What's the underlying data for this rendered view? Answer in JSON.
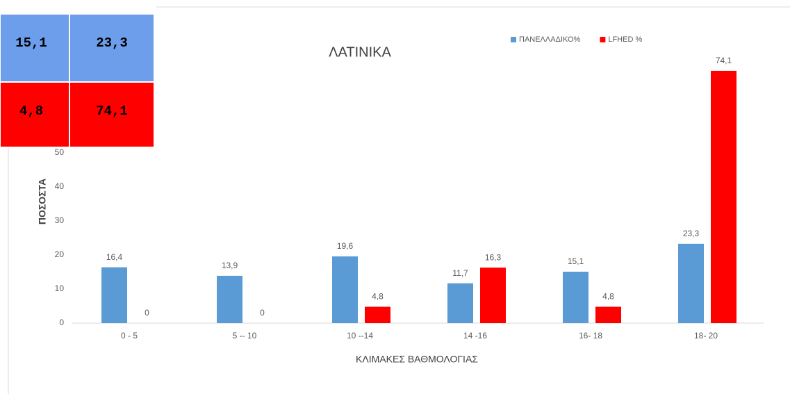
{
  "chart_data": {
    "type": "bar",
    "title": "ΛΑΤΙΝΙΚΑ",
    "x_label": "ΚΛΙΜΑΚΕΣ ΒΑΘΜΟΛΟΓΙΑΣ",
    "y_label": "ΠΟΣΟΣΤΑ",
    "categories": [
      "0 - 5",
      "5 -- 10",
      "10 --14",
      "14 -16",
      "16- 18",
      "18- 20"
    ],
    "series": [
      {
        "name": "ΠΑΝΕΛΛΑΔΙΚΟ%",
        "color": "#5b9bd5",
        "values": [
          16.4,
          13.9,
          19.6,
          11.7,
          15.1,
          23.3
        ],
        "value_labels": [
          "16,4",
          "13,9",
          "19,6",
          "11,7",
          "15,1",
          "23,3"
        ]
      },
      {
        "name": "LFHED %",
        "color": "#ff0000",
        "values": [
          0,
          0,
          4.8,
          16.3,
          4.8,
          74.1
        ],
        "value_labels": [
          "0",
          "0",
          "4,8",
          "16,3",
          "4,8",
          "74,1"
        ]
      }
    ],
    "ylim": [
      0,
      80
    ],
    "yticks": [
      0,
      10,
      20,
      30,
      40,
      50
    ],
    "grid": false,
    "legend": "top-right"
  },
  "overlay_table": {
    "rows": [
      [
        "15,1",
        "23,3"
      ],
      [
        "4,8",
        "74,1"
      ]
    ]
  }
}
